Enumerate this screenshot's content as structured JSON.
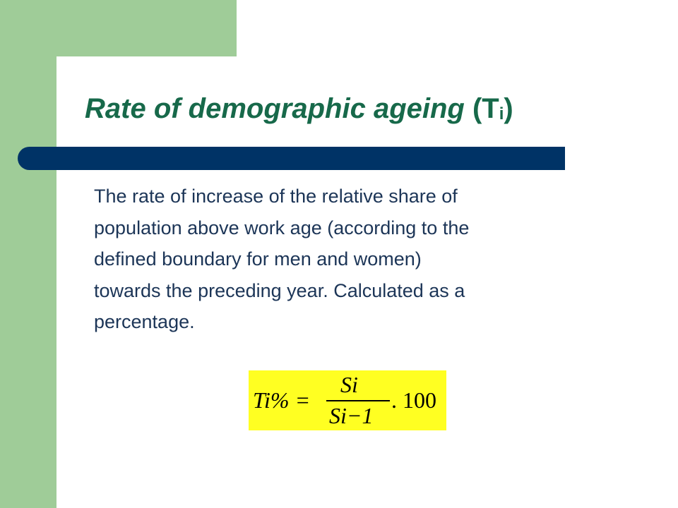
{
  "slide": {
    "title": {
      "text": "Rate of demographic ageing",
      "symbol": "(T",
      "subscript": "i",
      "close": ")"
    },
    "body": [
      "The rate of increase of the relative share of",
      "population above work age (according to the",
      "defined boundary for men and women)",
      "towards the preceding year. Calculated as a",
      "percentage."
    ],
    "formula": {
      "lhs": "Ti% =",
      "numerator": "Si",
      "denominator": "Si−1",
      "multiplier": ". 100"
    }
  }
}
